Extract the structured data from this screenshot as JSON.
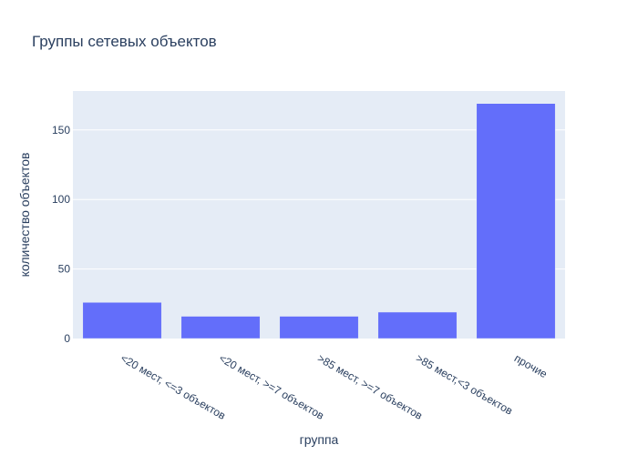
{
  "colors": {
    "plot_background": "#e5ecf6",
    "grid": "#ffffff",
    "bar": "#636efa",
    "text": "#2a3f5f"
  },
  "chart_data": {
    "type": "bar",
    "title": "Группы сетевых объектов",
    "xlabel": "группа",
    "ylabel": "количество объектов",
    "categories": [
      "<20 мест, <=3 объектов",
      "<20 мест, >=7 объектов",
      ">85 мест, >=7 объектов",
      ">85 мест,<3 объектов",
      "прочие"
    ],
    "values": [
      26,
      16,
      16,
      19,
      169
    ],
    "ylim": [
      0,
      178
    ],
    "yticks": [
      0,
      50,
      100,
      150
    ],
    "grid": true,
    "legend": "none"
  }
}
